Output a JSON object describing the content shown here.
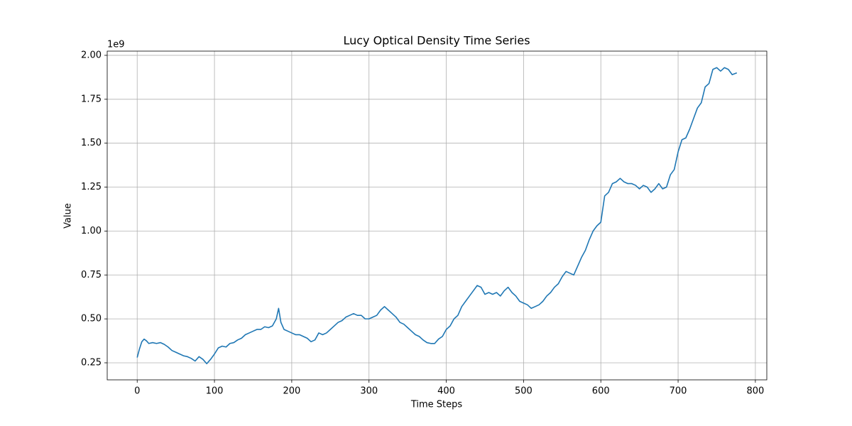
{
  "chart_data": {
    "type": "line",
    "title": "Lucy Optical Density Time Series",
    "xlabel": "Time Steps",
    "ylabel": "Value",
    "y_offset_text": "1e9",
    "x": [
      0,
      3,
      6,
      9,
      12,
      15,
      20,
      25,
      30,
      35,
      40,
      45,
      50,
      55,
      60,
      65,
      70,
      75,
      80,
      85,
      90,
      95,
      100,
      105,
      110,
      115,
      120,
      125,
      130,
      135,
      140,
      145,
      150,
      155,
      160,
      165,
      170,
      175,
      180,
      183,
      186,
      190,
      195,
      200,
      205,
      210,
      215,
      220,
      225,
      230,
      235,
      240,
      245,
      250,
      255,
      260,
      265,
      270,
      275,
      280,
      285,
      290,
      295,
      300,
      305,
      310,
      315,
      320,
      325,
      330,
      335,
      340,
      345,
      350,
      355,
      360,
      365,
      370,
      375,
      380,
      385,
      390,
      395,
      400,
      405,
      410,
      415,
      420,
      425,
      430,
      435,
      440,
      445,
      450,
      455,
      460,
      465,
      470,
      475,
      480,
      485,
      490,
      495,
      500,
      505,
      510,
      515,
      520,
      525,
      530,
      535,
      540,
      545,
      550,
      555,
      560,
      565,
      570,
      575,
      580,
      585,
      590,
      595,
      600,
      605,
      610,
      615,
      620,
      625,
      630,
      635,
      640,
      645,
      650,
      655,
      660,
      665,
      670,
      675,
      680,
      685,
      690,
      695,
      700,
      705,
      710,
      715,
      720,
      725,
      730,
      735,
      740,
      745,
      750,
      755,
      760,
      765,
      770,
      776
    ],
    "series": [
      {
        "name": "Value",
        "color": "#1f77b4",
        "values": [
          0.28,
          0.33,
          0.37,
          0.385,
          0.375,
          0.36,
          0.365,
          0.36,
          0.365,
          0.355,
          0.34,
          0.32,
          0.31,
          0.3,
          0.29,
          0.285,
          0.275,
          0.26,
          0.285,
          0.27,
          0.245,
          0.27,
          0.3,
          0.335,
          0.345,
          0.34,
          0.36,
          0.365,
          0.38,
          0.39,
          0.41,
          0.42,
          0.43,
          0.44,
          0.44,
          0.455,
          0.45,
          0.46,
          0.5,
          0.56,
          0.48,
          0.44,
          0.43,
          0.42,
          0.41,
          0.41,
          0.4,
          0.39,
          0.37,
          0.38,
          0.42,
          0.41,
          0.42,
          0.44,
          0.46,
          0.48,
          0.49,
          0.51,
          0.52,
          0.53,
          0.52,
          0.52,
          0.5,
          0.5,
          0.51,
          0.52,
          0.55,
          0.57,
          0.55,
          0.53,
          0.51,
          0.48,
          0.47,
          0.45,
          0.43,
          0.41,
          0.4,
          0.38,
          0.365,
          0.36,
          0.36,
          0.385,
          0.4,
          0.44,
          0.46,
          0.5,
          0.52,
          0.57,
          0.6,
          0.63,
          0.66,
          0.69,
          0.68,
          0.64,
          0.65,
          0.64,
          0.65,
          0.63,
          0.66,
          0.68,
          0.65,
          0.63,
          0.6,
          0.59,
          0.58,
          0.56,
          0.57,
          0.58,
          0.6,
          0.63,
          0.65,
          0.68,
          0.7,
          0.74,
          0.77,
          0.76,
          0.75,
          0.8,
          0.85,
          0.89,
          0.95,
          1.0,
          1.03,
          1.05,
          1.2,
          1.22,
          1.27,
          1.28,
          1.3,
          1.28,
          1.27,
          1.27,
          1.26,
          1.24,
          1.26,
          1.25,
          1.22,
          1.24,
          1.27,
          1.24,
          1.25,
          1.32,
          1.35,
          1.45,
          1.52,
          1.53,
          1.58,
          1.64,
          1.7,
          1.73,
          1.82,
          1.84,
          1.92,
          1.93,
          1.91,
          1.93,
          1.92,
          1.89,
          1.9
        ]
      }
    ],
    "xlim": [
      -38.8,
      814.8
    ],
    "xticks": [
      0,
      100,
      200,
      300,
      400,
      500,
      600,
      700,
      800
    ],
    "ylim": [
      0.153,
      2.024
    ],
    "yticks": [
      {
        "value": 0.25,
        "label": "0.25"
      },
      {
        "value": 0.5,
        "label": "0.50"
      },
      {
        "value": 0.75,
        "label": "0.75"
      },
      {
        "value": 1,
        "label": "1.00"
      },
      {
        "value": 1.25,
        "label": "1.25"
      },
      {
        "value": 1.5,
        "label": "1.50"
      },
      {
        "value": 1.75,
        "label": "1.75"
      },
      {
        "value": 2,
        "label": "2.00"
      }
    ],
    "grid": true
  }
}
